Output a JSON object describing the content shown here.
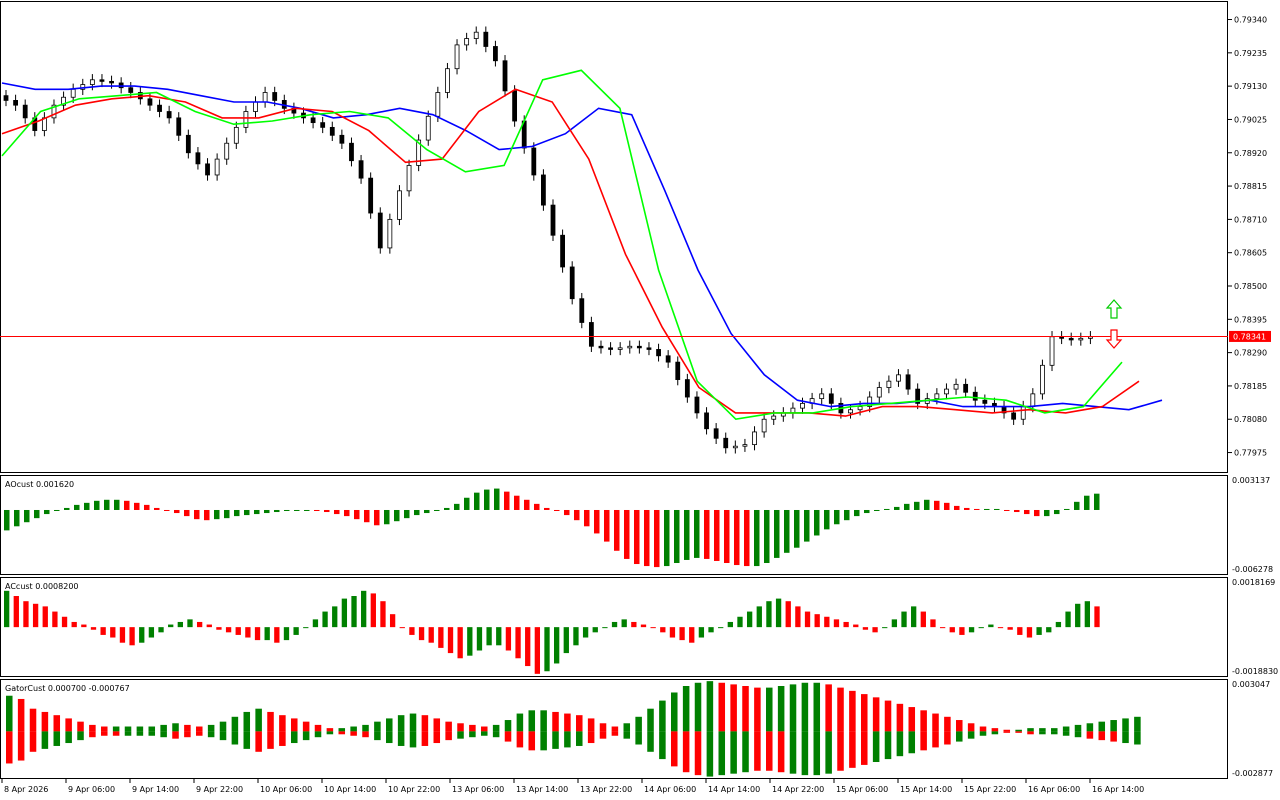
{
  "chart_data": [
    {
      "panel": "main",
      "type": "candlestick",
      "y_ticks": [
        "0.79340",
        "0.79235",
        "0.79130",
        "0.79025",
        "0.78920",
        "0.78815",
        "0.78710",
        "0.78605",
        "0.78500",
        "0.78395",
        "0.78290",
        "0.78185",
        "0.78080",
        "0.77975"
      ],
      "ylim": [
        0.7792,
        0.7937
      ],
      "current_price": "0.78341",
      "current_price_value": 0.78341,
      "candles_close": [
        0.7907,
        0.7899,
        0.7907,
        0.7912,
        0.7915,
        0.7914,
        0.7911,
        0.7907,
        0.7903,
        0.7892,
        0.7885,
        0.7895,
        0.7905,
        0.7911,
        0.7906,
        0.7903,
        0.79,
        0.7895,
        0.7884,
        0.7862,
        0.788,
        0.7896,
        0.7911,
        0.7926,
        0.793,
        0.7921,
        0.7902,
        0.7885,
        0.7866,
        0.7846,
        0.7831,
        0.783,
        0.7831,
        0.783,
        0.7826,
        0.7815,
        0.7805,
        0.7799,
        0.78,
        0.7808,
        0.781,
        0.7813,
        0.7816,
        0.781,
        0.7812,
        0.7818,
        0.7822,
        0.7813,
        0.7816,
        0.7819,
        0.7814,
        0.7812,
        0.7808,
        0.7816,
        0.7834,
        0.7833,
        0.7834
      ],
      "indicator_lines": [
        {
          "color": "#0000ff",
          "values": [
            0.7914,
            0.7912,
            0.7912,
            0.7913,
            0.7913,
            0.7912,
            0.791,
            0.7908,
            0.7908,
            0.7906,
            0.7903,
            0.7904,
            0.7906,
            0.7904,
            0.7899,
            0.7893,
            0.7894,
            0.7898,
            0.7906,
            0.7904,
            0.788,
            0.7855,
            0.7835,
            0.7822,
            0.7814,
            0.7812,
            0.7813,
            0.7813,
            0.7814,
            0.7812,
            0.7812,
            0.7812,
            0.7813,
            0.7812,
            0.7811,
            0.7814
          ]
        },
        {
          "color": "#ff0000",
          "values": [
            0.7898,
            0.7902,
            0.7907,
            0.7909,
            0.791,
            0.7908,
            0.7903,
            0.7903,
            0.7906,
            0.7905,
            0.7899,
            0.7889,
            0.789,
            0.7905,
            0.7912,
            0.7908,
            0.789,
            0.786,
            0.7837,
            0.7818,
            0.781,
            0.781,
            0.781,
            0.7809,
            0.7812,
            0.7812,
            0.7811,
            0.781,
            0.7811,
            0.781,
            0.7812,
            0.782
          ]
        },
        {
          "color": "#00ff00",
          "values": [
            0.7891,
            0.7905,
            0.7909,
            0.791,
            0.7911,
            0.7905,
            0.7901,
            0.7902,
            0.7904,
            0.7905,
            0.7903,
            0.7893,
            0.7886,
            0.7888,
            0.7915,
            0.7918,
            0.7906,
            0.7855,
            0.782,
            0.7808,
            0.781,
            0.781,
            0.7812,
            0.7813,
            0.7814,
            0.7815,
            0.7814,
            0.781,
            0.7812,
            0.7826
          ]
        }
      ]
    },
    {
      "panel": "AO",
      "type": "bar",
      "label": "AOcust 0.001620",
      "ylim": [
        -0.006278,
        0.003137
      ],
      "y_ticks": [
        "0.003137",
        "-0.006278"
      ],
      "colors": {
        "up": "#008000",
        "down": "#ff0000"
      },
      "values": [
        -0.002,
        -0.0016,
        -0.0012,
        -0.0008,
        -0.0004,
        -0.0001,
        0.0002,
        0.0005,
        0.0007,
        0.0009,
        0.001,
        0.001,
        0.0009,
        0.0007,
        0.0005,
        0.0002,
        0.0,
        -0.0003,
        -0.0006,
        -0.0009,
        -0.001,
        -0.0009,
        -0.0008,
        -0.0006,
        -0.0005,
        -0.0004,
        -0.0003,
        -0.0002,
        -0.0001,
        0.0,
        0.0,
        -0.0001,
        -0.0002,
        -0.0004,
        -0.0006,
        -0.0009,
        -0.0012,
        -0.0015,
        -0.0014,
        -0.0011,
        -0.0008,
        -0.0005,
        -0.0003,
        -0.0001,
        0.0002,
        0.0006,
        0.0012,
        0.0017,
        0.002,
        0.0021,
        0.0018,
        0.0014,
        0.001,
        0.0006,
        0.0002,
        -0.0001,
        -0.0005,
        -0.001,
        -0.0016,
        -0.0023,
        -0.0031,
        -0.004,
        -0.0048,
        -0.0053,
        -0.0055,
        -0.0056,
        -0.0055,
        -0.0052,
        -0.0049,
        -0.0047,
        -0.0048,
        -0.005,
        -0.0052,
        -0.0054,
        -0.0055,
        -0.0055,
        -0.0052,
        -0.0047,
        -0.0042,
        -0.0037,
        -0.0031,
        -0.0025,
        -0.0019,
        -0.0014,
        -0.001,
        -0.0006,
        -0.0003,
        -0.0001,
        0.0001,
        0.0003,
        0.0006,
        0.0008,
        0.001,
        0.0009,
        0.0007,
        0.0004,
        0.0002,
        0.0001,
        0.0001,
        0.0001,
        0.0,
        -0.0002,
        -0.0004,
        -0.0006,
        -0.0006,
        -0.0004,
        0.0001,
        0.0008,
        0.0014,
        0.0016
      ]
    },
    {
      "panel": "AC",
      "type": "bar",
      "label": "ACcust 0.0008200",
      "ylim": [
        -0.001883,
        0.0018169
      ],
      "y_ticks": [
        "0.0018169",
        "-0.0018830"
      ],
      "colors": {
        "up": "#008000",
        "down": "#ff0000"
      },
      "values": [
        0.0014,
        0.0012,
        0.001,
        0.0009,
        0.0008,
        0.0006,
        0.0004,
        0.0002,
        0.0001,
        -0.0001,
        -0.0003,
        -0.0004,
        -0.0006,
        -0.0007,
        -0.0006,
        -0.0004,
        -0.0002,
        0.0001,
        0.0002,
        0.0003,
        0.0002,
        0.0001,
        -0.0001,
        -0.0002,
        -0.0003,
        -0.0004,
        -0.0005,
        -0.0005,
        -0.0006,
        -0.0005,
        -0.0003,
        0.0,
        0.0003,
        0.0006,
        0.0008,
        0.0011,
        0.0012,
        0.0014,
        0.0013,
        0.001,
        0.0005,
        0.0,
        -0.0003,
        -0.0005,
        -0.0006,
        -0.0008,
        -0.001,
        -0.0012,
        -0.0011,
        -0.0009,
        -0.0007,
        -0.0007,
        -0.0009,
        -0.0012,
        -0.0015,
        -0.0018,
        -0.0017,
        -0.0014,
        -0.001,
        -0.0007,
        -0.0004,
        -0.0002,
        0.0,
        0.0002,
        0.0003,
        0.0002,
        0.0001,
        0.0,
        -0.0002,
        -0.0004,
        -0.0005,
        -0.0006,
        -0.0004,
        -0.0002,
        0.0,
        0.0002,
        0.0004,
        0.0006,
        0.0008,
        0.001,
        0.0011,
        0.001,
        0.0008,
        0.0006,
        0.0005,
        0.0004,
        0.0003,
        0.0002,
        0.0001,
        -0.0001,
        -0.0002,
        0.0,
        0.0003,
        0.0006,
        0.0008,
        0.0006,
        0.0003,
        0.0,
        -0.0002,
        -0.0003,
        -0.0002,
        0.0,
        0.0001,
        0.0,
        -0.0001,
        -0.0003,
        -0.0004,
        -0.0003,
        -0.0002,
        0.0002,
        0.0006,
        0.0009,
        0.001,
        0.0008
      ]
    },
    {
      "panel": "Gator",
      "type": "bar",
      "label": "GatorCust 0.000700 -0.000767",
      "ylim": [
        -0.002877,
        0.003047
      ],
      "y_ticks": [
        "0.003047",
        "-0.002877"
      ],
      "colors": {
        "up": "#008000",
        "down": "#ff0000"
      },
      "upper": [
        0.0022,
        0.002,
        0.0014,
        0.0012,
        0.001,
        0.0008,
        0.0006,
        0.0004,
        0.0003,
        0.0003,
        0.0003,
        0.0003,
        0.0003,
        0.0004,
        0.0005,
        0.0004,
        0.0003,
        0.0004,
        0.0006,
        0.0009,
        0.0012,
        0.0014,
        0.0012,
        0.001,
        0.0008,
        0.0006,
        0.0004,
        0.0002,
        0.0002,
        0.0003,
        0.0004,
        0.0006,
        0.0008,
        0.001,
        0.0011,
        0.001,
        0.0008,
        0.0006,
        0.0005,
        0.0004,
        0.0003,
        0.0004,
        0.0007,
        0.0011,
        0.0013,
        0.0013,
        0.0012,
        0.0011,
        0.001,
        0.0008,
        0.0005,
        0.0003,
        0.0005,
        0.0009,
        0.0014,
        0.0019,
        0.0024,
        0.0028,
        0.003,
        0.0031,
        0.003,
        0.0029,
        0.0028,
        0.0027,
        0.0027,
        0.0028,
        0.0029,
        0.003,
        0.003,
        0.0029,
        0.0027,
        0.0025,
        0.0023,
        0.0021,
        0.0019,
        0.0017,
        0.0015,
        0.0013,
        0.0011,
        0.0009,
        0.0007,
        0.0005,
        0.0003,
        0.0002,
        0.0001,
        0.0001,
        0.0002,
        0.0002,
        0.0002,
        0.0003,
        0.0004,
        0.0005,
        0.0006,
        0.0007,
        0.0008,
        0.0009
      ]
    }
  ],
  "x_ticks": [
    "8 Apr 2026",
    "9 Apr 06:00",
    "9 Apr 14:00",
    "9 Apr 22:00",
    "10 Apr 06:00",
    "10 Apr 14:00",
    "10 Apr 22:00",
    "13 Apr 06:00",
    "13 Apr 14:00",
    "13 Apr 22:00",
    "14 Apr 06:00",
    "14 Apr 14:00",
    "14 Apr 22:00",
    "15 Apr 06:00",
    "15 Apr 14:00",
    "15 Apr 22:00",
    "16 Apr 06:00",
    "16 Apr 14:00"
  ]
}
